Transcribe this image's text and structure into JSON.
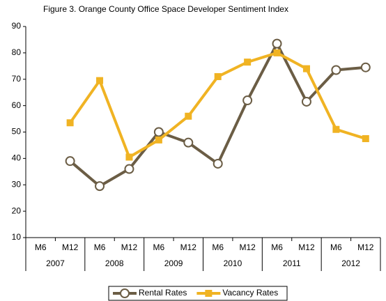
{
  "chart_data": {
    "type": "line",
    "title": "Figure 3. Orange County Office Space Developer Sentiment Index",
    "categories": [
      "M6",
      "M12",
      "M6",
      "M12",
      "M6",
      "M12",
      "M6",
      "M12",
      "M6",
      "M12",
      "M6",
      "M12"
    ],
    "x_groups": [
      "2007",
      "2008",
      "2009",
      "2010",
      "2011",
      "2012"
    ],
    "series": [
      {
        "name": "Rental Rates",
        "color": "#6b5d45",
        "marker": "circle",
        "values": [
          null,
          39,
          29.5,
          36,
          50,
          46,
          38,
          62,
          83.5,
          61.5,
          73.5,
          74.5
        ]
      },
      {
        "name": "Vacancy Rates",
        "color": "#f0b323",
        "marker": "square",
        "values": [
          null,
          53.5,
          69.5,
          40.5,
          47,
          56,
          71,
          76.5,
          80,
          74,
          51,
          47.5
        ]
      }
    ],
    "ylim": [
      10,
      90
    ],
    "yticks": [
      10,
      20,
      30,
      40,
      50,
      60,
      70,
      80,
      90
    ],
    "grid": false,
    "legend": "bottom"
  }
}
